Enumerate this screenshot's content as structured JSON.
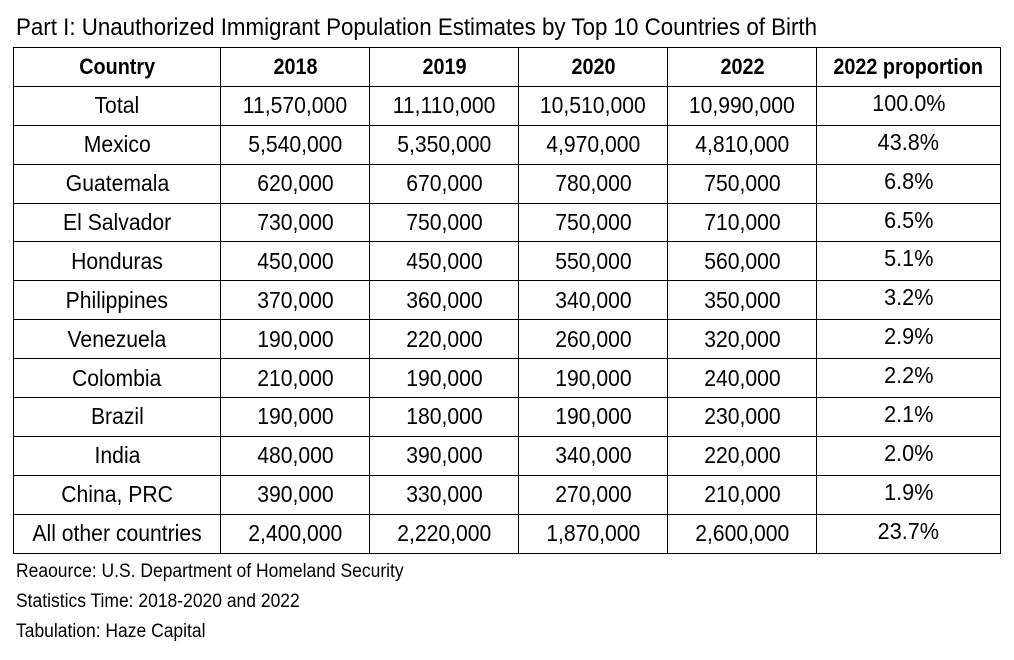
{
  "chart_data": {
    "type": "table",
    "title": "Part I: Unauthorized Immigrant Population Estimates by Top 10 Countries of Birth",
    "columns": [
      "Country",
      "2018",
      "2019",
      "2020",
      "2022",
      "2022 proportion"
    ],
    "rows": [
      [
        "Total",
        "11,570,000",
        "11,110,000",
        "10,510,000",
        "10,990,000",
        "100.0%"
      ],
      [
        "Mexico",
        "5,540,000",
        "5,350,000",
        "4,970,000",
        "4,810,000",
        "43.8%"
      ],
      [
        "Guatemala",
        "620,000",
        "670,000",
        "780,000",
        "750,000",
        "6.8%"
      ],
      [
        "El Salvador",
        "730,000",
        "750,000",
        "750,000",
        "710,000",
        "6.5%"
      ],
      [
        "Honduras",
        "450,000",
        "450,000",
        "550,000",
        "560,000",
        "5.1%"
      ],
      [
        "Philippines",
        "370,000",
        "360,000",
        "340,000",
        "350,000",
        "3.2%"
      ],
      [
        "Venezuela",
        "190,000",
        "220,000",
        "260,000",
        "320,000",
        "2.9%"
      ],
      [
        "Colombia",
        "210,000",
        "190,000",
        "190,000",
        "240,000",
        "2.2%"
      ],
      [
        "Brazil",
        "190,000",
        "180,000",
        "190,000",
        "230,000",
        "2.1%"
      ],
      [
        "India",
        "480,000",
        "390,000",
        "340,000",
        "220,000",
        "2.0%"
      ],
      [
        "China, PRC",
        "390,000",
        "330,000",
        "270,000",
        "210,000",
        "1.9%"
      ],
      [
        "All other countries",
        "2,400,000",
        "2,220,000",
        "1,870,000",
        "2,600,000",
        "23.7%"
      ]
    ]
  },
  "notes": [
    "Reaource: U.S. Department of Homeland Security",
    "Statistics Time: 2018-2020 and 2022",
    "Tabulation: Haze Capital"
  ]
}
